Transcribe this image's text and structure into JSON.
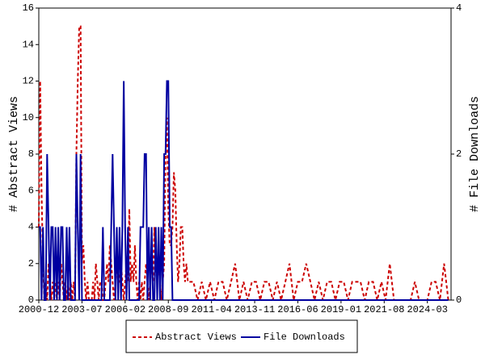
{
  "chart_data": {
    "type": "line",
    "y_label": "# Abstract Views",
    "y2_label": "# File Downloads",
    "xlim": [
      "2000-12",
      "2025-08"
    ],
    "xticks": [
      "2000-12",
      "2003-07",
      "2006-02",
      "2008-09",
      "2011-04",
      "2013-11",
      "2016-06",
      "2019-01",
      "2021-08",
      "2024-03"
    ],
    "ylim": [
      0,
      16
    ],
    "yticks": [
      0,
      2,
      4,
      6,
      8,
      10,
      12,
      14,
      16
    ],
    "y2lim": [
      0,
      4
    ],
    "y2ticks": [
      0,
      2,
      4
    ],
    "legend": "bottom",
    "x": [
      "2000-12",
      "2001-01",
      "2001-02",
      "2001-03",
      "2001-04",
      "2001-05",
      "2001-06",
      "2001-07",
      "2001-08",
      "2001-09",
      "2001-10",
      "2001-11",
      "2001-12",
      "2002-01",
      "2002-02",
      "2002-03",
      "2002-04",
      "2002-05",
      "2002-06",
      "2002-07",
      "2002-08",
      "2002-09",
      "2002-10",
      "2002-11",
      "2002-12",
      "2003-01",
      "2003-02",
      "2003-03",
      "2003-04",
      "2003-05",
      "2003-06",
      "2003-07",
      "2003-08",
      "2003-09",
      "2003-10",
      "2003-11",
      "2003-12",
      "2004-01",
      "2004-02",
      "2004-03",
      "2004-04",
      "2004-05",
      "2004-06",
      "2004-07",
      "2004-08",
      "2004-09",
      "2004-10",
      "2004-11",
      "2004-12",
      "2005-01",
      "2005-02",
      "2005-03",
      "2005-04",
      "2005-05",
      "2005-06",
      "2005-07",
      "2005-08",
      "2005-09",
      "2005-10",
      "2005-11",
      "2005-12",
      "2006-01",
      "2006-02",
      "2006-03",
      "2006-04",
      "2006-05",
      "2006-06",
      "2006-07",
      "2006-08",
      "2006-09",
      "2006-10",
      "2006-11",
      "2006-12",
      "2007-01",
      "2007-02",
      "2007-03",
      "2007-04",
      "2007-05",
      "2007-06",
      "2007-07",
      "2007-08",
      "2007-09",
      "2007-10",
      "2007-11",
      "2007-12",
      "2008-01",
      "2008-02",
      "2008-03",
      "2008-04",
      "2008-05",
      "2008-06",
      "2008-07",
      "2008-08",
      "2008-09",
      "2008-10",
      "2008-11",
      "2008-12",
      "2009-01",
      "2009-02",
      "2009-03",
      "2009-04",
      "2009-05",
      "2009-06",
      "2009-07",
      "2009-08",
      "2009-09",
      "2009-10",
      "2009-11",
      "2009-12",
      "2010-03",
      "2010-06",
      "2010-09",
      "2010-12",
      "2011-03",
      "2011-06",
      "2011-09",
      "2011-12",
      "2012-03",
      "2012-06",
      "2012-09",
      "2012-12",
      "2013-03",
      "2013-06",
      "2013-09",
      "2013-12",
      "2014-03",
      "2014-06",
      "2014-09",
      "2014-12",
      "2015-03",
      "2015-06",
      "2015-09",
      "2015-12",
      "2016-03",
      "2016-06",
      "2016-09",
      "2016-12",
      "2017-03",
      "2017-06",
      "2017-09",
      "2017-12",
      "2018-03",
      "2018-06",
      "2018-09",
      "2018-12",
      "2019-03",
      "2019-06",
      "2019-09",
      "2019-12",
      "2020-03",
      "2020-06",
      "2020-09",
      "2020-12",
      "2021-03",
      "2021-06",
      "2021-09",
      "2021-12",
      "2022-03",
      "2022-06",
      "2022-09",
      "2022-12",
      "2023-03",
      "2023-06",
      "2023-09",
      "2023-12",
      "2024-03",
      "2024-06",
      "2024-09",
      "2024-12",
      "2025-03",
      "2025-06"
    ],
    "series": [
      {
        "name": "Abstract Views",
        "color": "#cc0000",
        "linestyle": "dashed",
        "values": [
          4,
          12,
          6,
          2,
          0,
          1,
          0,
          2,
          1,
          0,
          1,
          0,
          1,
          0,
          1,
          0,
          2,
          1,
          0,
          1,
          0,
          1,
          0,
          1,
          0,
          1,
          0,
          8,
          12,
          15,
          15,
          2,
          3,
          1,
          0,
          1,
          0,
          0,
          0,
          1,
          0,
          2,
          1,
          0,
          1,
          1,
          0,
          0,
          1,
          2,
          1,
          3,
          2,
          1,
          0,
          1,
          2,
          1,
          1,
          2,
          1,
          0,
          1,
          2,
          1,
          5,
          1,
          2,
          1,
          3,
          1,
          0,
          1,
          0,
          1,
          0,
          1,
          2,
          1,
          0,
          1,
          2,
          1,
          4,
          2,
          1,
          2,
          1,
          0,
          1,
          2,
          8,
          10,
          5,
          3,
          3,
          4,
          7,
          6,
          3,
          1,
          2,
          4,
          4,
          2,
          1,
          2,
          1,
          1,
          1,
          0,
          1,
          0,
          1,
          0,
          1,
          1,
          0,
          1,
          2,
          0,
          1,
          0,
          1,
          1,
          0,
          1,
          1,
          0,
          1,
          0,
          1,
          2,
          0,
          1,
          1,
          2,
          1,
          0,
          1,
          0,
          1,
          1,
          0,
          1,
          1,
          0,
          1,
          1,
          1,
          0,
          1,
          1,
          0,
          1,
          0,
          2,
          0,
          0,
          0,
          0,
          0,
          1,
          0,
          0,
          0,
          1,
          1,
          0,
          2,
          0
        ]
      },
      {
        "name": "File Downloads",
        "color": "#0000a0",
        "linestyle": "solid",
        "axis": "y2",
        "values": [
          1,
          1,
          0,
          1,
          0,
          0,
          2,
          1,
          0,
          1,
          1,
          0,
          1,
          0,
          1,
          0,
          1,
          1,
          0,
          0,
          1,
          0,
          1,
          0,
          0,
          0,
          0,
          2,
          1,
          0,
          2,
          0,
          0,
          0,
          0,
          0,
          0,
          0,
          0,
          0,
          0,
          0,
          0,
          0,
          0,
          0,
          1,
          0,
          0,
          0,
          0,
          0,
          1,
          2,
          1,
          0,
          1,
          0,
          1,
          0,
          1,
          3,
          1,
          0,
          1,
          0,
          0,
          0,
          0,
          0,
          0,
          0,
          0,
          1,
          1,
          1,
          2,
          2,
          0,
          1,
          0,
          1,
          0,
          0,
          1,
          0,
          1,
          0,
          1,
          0,
          2,
          2,
          3,
          3,
          1,
          1,
          0,
          0,
          0,
          0,
          0,
          0,
          0,
          0,
          0,
          0,
          0,
          0,
          0,
          0,
          0,
          0,
          0,
          0,
          0,
          0,
          0,
          0,
          0,
          0,
          0,
          0,
          0,
          0,
          0,
          0,
          0,
          0,
          0,
          0,
          0,
          0,
          0,
          0,
          0,
          0,
          0,
          0,
          0,
          0,
          0,
          0,
          0,
          0,
          0,
          0,
          0,
          0,
          0,
          0,
          0,
          0,
          0,
          0,
          0,
          0,
          0,
          0,
          0,
          0,
          0,
          0,
          0,
          0,
          0,
          0,
          0,
          0,
          0,
          0,
          0
        ]
      }
    ]
  }
}
